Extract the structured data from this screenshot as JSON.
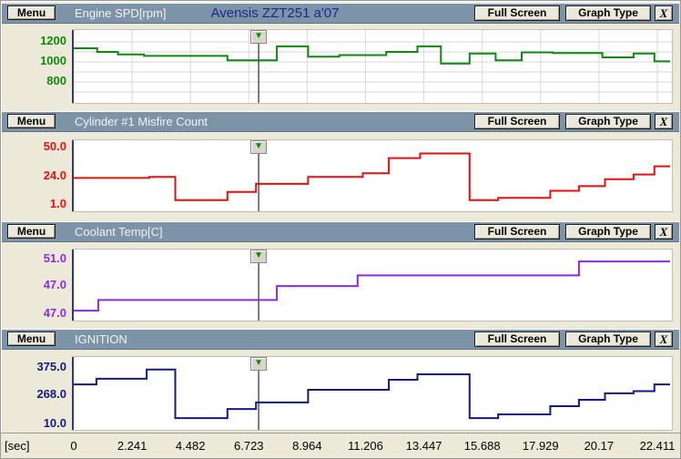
{
  "vehicle_title": "Avensis ZZT251 a'07",
  "header_shared": {
    "menu_label": "Menu",
    "full_screen_label": "Full Screen",
    "graph_type_label": "Graph Type",
    "close_label": "X"
  },
  "time_axis": {
    "unit": "[sec]",
    "ticks": [
      "0",
      "2.241",
      "4.482",
      "6.723",
      "8.964",
      "11.206",
      "13.447",
      "15.688",
      "17.929",
      "20.17",
      "22.411"
    ]
  },
  "cursor": {
    "time_sec": 7.1,
    "marker": "green-down-arrow"
  },
  "colors": {
    "panel_header_bg": "#7D93A8",
    "window_bg": "#ECE9D8",
    "plot_bg": "#FFFFFF",
    "grid": "#D7D7D7",
    "axis_line": "#2E3A70",
    "cursor_line": "#000000",
    "vehicle_title_text": "#1A2A8C",
    "engine_spd": "#0B8A0B",
    "misfire": "#E80F0F",
    "coolant": "#8A2BE2",
    "ignition": "#131A84"
  },
  "chart_data": [
    {
      "panel": "engine-spd",
      "type": "line",
      "step": true,
      "title": "Engine SPD[rpm]",
      "color": "#0B8A0B",
      "grid": true,
      "grid_values": [
        1200,
        1100,
        1000,
        900,
        800,
        700
      ],
      "y_axis_labels": [
        {
          "text": "1200",
          "pos": 0.163
        },
        {
          "text": "1000",
          "pos": 0.438
        },
        {
          "text": "800",
          "pos": 0.713
        }
      ],
      "ylim": [
        591,
        1318
      ],
      "xlim": [
        0,
        22.411
      ],
      "points": [
        [
          0,
          1136
        ],
        [
          0.9,
          1100
        ],
        [
          1.7,
          1075
        ],
        [
          2.7,
          1060
        ],
        [
          5.9,
          1015
        ],
        [
          7.8,
          1155
        ],
        [
          9.0,
          1052
        ],
        [
          10.2,
          1068
        ],
        [
          12.0,
          1100
        ],
        [
          13.2,
          1155
        ],
        [
          14.1,
          984
        ],
        [
          15.2,
          1084
        ],
        [
          16.2,
          1015
        ],
        [
          17.2,
          1095
        ],
        [
          18.4,
          1088
        ],
        [
          20.3,
          1045
        ],
        [
          21.5,
          1084
        ],
        [
          22.3,
          1005
        ]
      ]
    },
    {
      "panel": "misfire-count",
      "type": "line",
      "step": true,
      "title": "Cylinder #1 Misfire Count",
      "color": "#E80F0F",
      "grid": false,
      "y_axis_labels": [
        {
          "text": "50.0",
          "pos": 0.103
        },
        {
          "text": "24.0",
          "pos": 0.513
        },
        {
          "text": "1.0",
          "pos": 0.91
        }
      ],
      "ylim": [
        -4.5,
        56.3
      ],
      "xlim": [
        0,
        22.411
      ],
      "points": [
        [
          0,
          24
        ],
        [
          2.9,
          25
        ],
        [
          3.9,
          5
        ],
        [
          5.9,
          12
        ],
        [
          7.0,
          19
        ],
        [
          9.0,
          25
        ],
        [
          11.1,
          28
        ],
        [
          12.1,
          41
        ],
        [
          13.3,
          45
        ],
        [
          15.2,
          5
        ],
        [
          16.3,
          7
        ],
        [
          18.3,
          13
        ],
        [
          19.4,
          17
        ],
        [
          20.4,
          23
        ],
        [
          21.5,
          27
        ],
        [
          22.3,
          34
        ]
      ]
    },
    {
      "panel": "coolant-temp",
      "type": "line",
      "step": true,
      "title": "Coolant Temp[C]",
      "color": "#8A2BE2",
      "grid": false,
      "y_axis_labels": [
        {
          "text": "51.0",
          "pos": 0.141
        },
        {
          "text": "47.0",
          "pos": 0.513
        },
        {
          "text": "47.0",
          "pos": 0.91
        }
      ],
      "ylim": [
        41.8,
        52.5
      ],
      "xlim": [
        0,
        22.411
      ],
      "points": [
        [
          0,
          43.3
        ],
        [
          0.94,
          44.9
        ],
        [
          7.8,
          47.0
        ],
        [
          10.9,
          48.6
        ],
        [
          19.4,
          50.7
        ]
      ]
    },
    {
      "panel": "ignition",
      "type": "line",
      "step": true,
      "title": "IGNITION",
      "color": "#131A84",
      "grid": false,
      "y_axis_labels": [
        {
          "text": "375.0",
          "pos": 0.15
        },
        {
          "text": "268.0",
          "pos": 0.525
        },
        {
          "text": "10.0",
          "pos": 0.925
        }
      ],
      "ylim": [
        -25,
        446
      ],
      "xlim": [
        0,
        22.411
      ],
      "points": [
        [
          0,
          269
        ],
        [
          0.87,
          305
        ],
        [
          2.8,
          365
        ],
        [
          3.9,
          51
        ],
        [
          5.9,
          110
        ],
        [
          7.0,
          152
        ],
        [
          9.0,
          234
        ],
        [
          12.1,
          299
        ],
        [
          13.2,
          334
        ],
        [
          15.2,
          51
        ],
        [
          16.3,
          75
        ],
        [
          18.3,
          128
        ],
        [
          19.4,
          169
        ],
        [
          20.4,
          211
        ],
        [
          21.5,
          225
        ],
        [
          22.3,
          269
        ]
      ]
    }
  ]
}
